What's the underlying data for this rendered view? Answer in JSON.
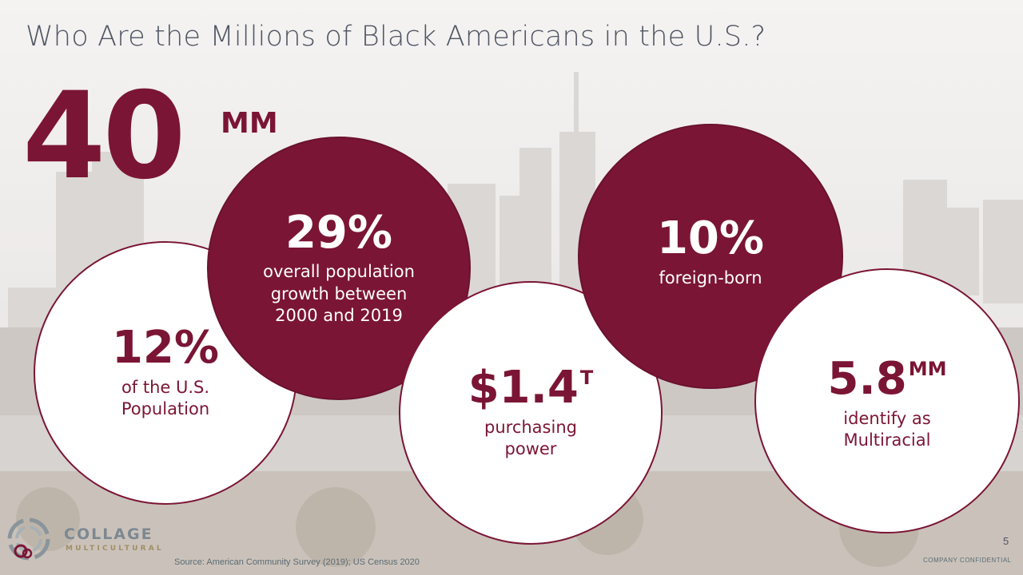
{
  "title": "Who Are the Millions of Black Americans in the U.S.?",
  "headline": {
    "value": "40",
    "unit": "MM"
  },
  "stats": {
    "population_share": {
      "value": "12%",
      "unit": "",
      "lines": [
        "of the U.S.",
        "Population"
      ]
    },
    "growth": {
      "value": "29%",
      "unit": "",
      "lines": [
        "overall population",
        "growth between",
        "2000 and 2019"
      ]
    },
    "purchasing": {
      "value": "$1.4",
      "unit": "T",
      "lines": [
        "purchasing",
        "power"
      ]
    },
    "foreign_born": {
      "value": "10%",
      "unit": "",
      "lines": [
        "foreign-born"
      ]
    },
    "multiracial": {
      "value": "5.8",
      "unit": "MM",
      "lines": [
        "identify as",
        "Multiracial"
      ]
    }
  },
  "logo": {
    "name": "COLLAGE",
    "sub": "MULTICULTURAL"
  },
  "source": "Source:  American Community Survey (2019); US Census 2020",
  "page_number": "5",
  "confidential": "COMPANY CONFIDENTIAL",
  "colors": {
    "accent": "#7b1535",
    "title": "#4f5663",
    "white": "#ffffff"
  }
}
